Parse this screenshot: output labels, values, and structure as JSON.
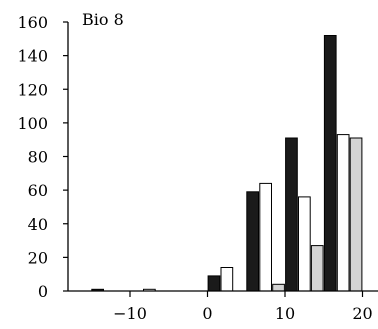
{
  "chart_data": {
    "type": "bar",
    "title": "Bio 8",
    "xlabel": "",
    "ylabel": "",
    "x_ticks": [
      -10,
      0,
      10,
      20
    ],
    "x_tick_labels": [
      "−10",
      "0",
      "10",
      "20"
    ],
    "y_ticks": [
      0,
      20,
      40,
      60,
      80,
      100,
      120,
      140,
      160
    ],
    "y_tick_labels": [
      "0",
      "20",
      "40",
      "60",
      "80",
      "100",
      "120",
      "140",
      "160"
    ],
    "xlim": [
      -18,
      22
    ],
    "ylim": [
      0,
      160
    ],
    "bin_width": 5,
    "grid": false,
    "legend": "none",
    "series": [
      {
        "color": "#1a1a1a",
        "points": [
          {
            "x": -15,
            "y": 1
          },
          {
            "x": 0,
            "y": 9
          },
          {
            "x": 5,
            "y": 59
          },
          {
            "x": 10,
            "y": 91
          },
          {
            "x": 15,
            "y": 152
          }
        ]
      },
      {
        "color": "#ffffff",
        "points": [
          {
            "x": -10,
            "y": 1
          },
          {
            "x": 0,
            "y": 14
          },
          {
            "x": 5,
            "y": 64
          },
          {
            "x": 10,
            "y": 56
          },
          {
            "x": 15,
            "y": 93
          }
        ]
      },
      {
        "color": "#d4d4d4",
        "points": [
          {
            "x": 5,
            "y": 4
          },
          {
            "x": 10,
            "y": 27
          },
          {
            "x": 15,
            "y": 91
          }
        ]
      }
    ]
  }
}
